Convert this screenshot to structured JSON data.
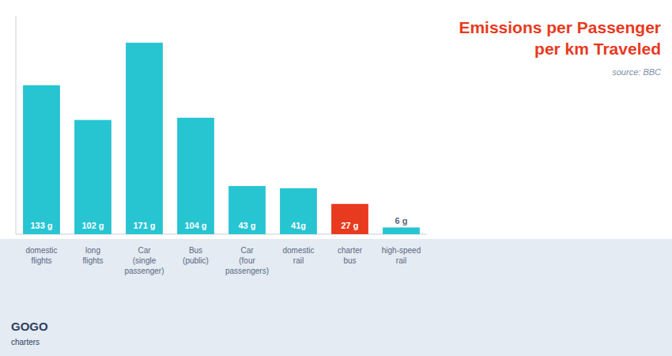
{
  "chart_data": {
    "type": "bar",
    "title": "Emissions per Passenger\nper km Traveled",
    "annotations": [
      "source: BBC",
      "GOGO",
      "charters"
    ],
    "categories": [
      "domestic\nflights",
      "long\nflights",
      "Car\n(single\npassenger)",
      "Bus\n(public)",
      "Car\n(four\npassengers)",
      "domestic\nrail",
      "charter\nbus",
      "high-speed\nrail"
    ],
    "values": [
      133,
      102,
      171,
      104,
      43,
      41,
      27,
      6
    ],
    "value_labels": [
      "133 g",
      "102 g",
      "171 g",
      "104 g",
      "43 g",
      "41g",
      "27 g",
      "6 g"
    ],
    "colors": [
      "#27C4D2",
      "#27C4D2",
      "#27C4D2",
      "#27C4D2",
      "#27C4D2",
      "#27C4D2",
      "#E83A1E",
      "#27C4D2"
    ],
    "ylim": [
      0,
      195
    ],
    "data_labels": true,
    "tick_labels": false,
    "grid": false
  }
}
